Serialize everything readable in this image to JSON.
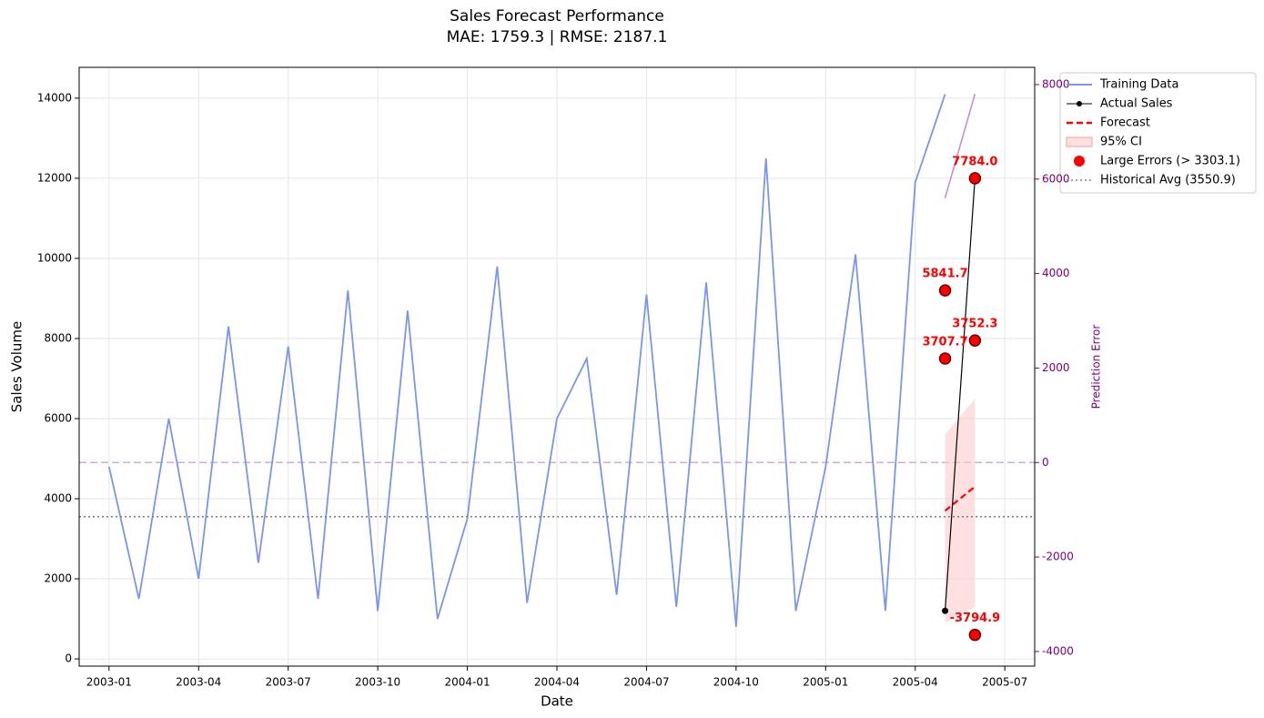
{
  "chart_data": {
    "type": "line",
    "title": "Sales Forecast Performance",
    "subtitle": "MAE: 1759.3 | RMSE: 2187.1",
    "x_label": "Date",
    "y_label": "Sales Volume",
    "y2_label": "Prediction Error",
    "xlim": [
      "2002-12",
      "2005-08"
    ],
    "xticks": [
      "2003-01",
      "2003-04",
      "2003-07",
      "2003-10",
      "2004-01",
      "2004-04",
      "2004-07",
      "2004-10",
      "2005-01",
      "2005-04",
      "2005-07"
    ],
    "ylim": [
      -180,
      14770
    ],
    "yticks": [
      0,
      2000,
      4000,
      6000,
      8000,
      10000,
      12000,
      14000
    ],
    "y2lim": [
      -4310,
      8365
    ],
    "y2ticks": [
      -4000,
      -2000,
      0,
      2000,
      4000,
      6000,
      8000
    ],
    "y2_color": "#800080",
    "grid": true,
    "legend": "upper right",
    "series": [
      {
        "name": "Training Data",
        "style": "line",
        "color": "#7b96e8",
        "x": [
          "2003-01",
          "2003-02",
          "2003-03",
          "2003-04",
          "2003-05",
          "2003-06",
          "2003-07",
          "2003-08",
          "2003-09",
          "2003-10",
          "2003-11",
          "2003-12",
          "2004-01",
          "2004-02",
          "2004-03",
          "2004-04",
          "2004-05",
          "2004-06",
          "2004-07",
          "2004-08",
          "2004-09",
          "2004-10",
          "2004-11",
          "2004-12",
          "2005-01",
          "2005-02",
          "2005-03",
          "2005-04",
          "2005-05"
        ],
        "values": [
          4800,
          1500,
          6000,
          2000,
          8300,
          2400,
          7800,
          1500,
          9200,
          1200,
          8700,
          1000,
          3500,
          9800,
          1400,
          6000,
          7500,
          1600,
          9100,
          1300,
          9400,
          800,
          12500,
          1200,
          4800,
          10100,
          1200,
          11900,
          14100
        ]
      },
      {
        "name": "Actual Sales",
        "style": "line-marker",
        "color": "#000000",
        "x": [
          "2005-05",
          "2005-06"
        ],
        "values": [
          1200,
          12000
        ]
      },
      {
        "name": "Forecast",
        "style": "dashed",
        "color": "#ff0000",
        "x": [
          "2005-05",
          "2005-06"
        ],
        "values": [
          3700,
          4300
        ]
      },
      {
        "name": "95% CI",
        "style": "band",
        "color": "#ffcccc",
        "x": [
          "2005-05",
          "2005-06"
        ],
        "lower": [
          900,
          1300
        ],
        "upper": [
          5600,
          6500
        ]
      },
      {
        "name": "Large Errors (> 3303.1)",
        "style": "points",
        "color": "#ff0000",
        "x": [
          "2005-05",
          "2005-05",
          "2005-06",
          "2005-06",
          "2005-06"
        ],
        "values": [
          9200,
          7500,
          12000,
          7950,
          600
        ],
        "point_labels": [
          "5841.7",
          "3707.7",
          "7784.0",
          "3752.3",
          "-3794.9"
        ]
      },
      {
        "name": "Historical Avg (3550.9)",
        "style": "hline",
        "color": "#808080",
        "value": 3550.9
      }
    ],
    "error": {
      "axis": "y2",
      "color": "#b060b0",
      "x": [
        "2005-05",
        "2005-06"
      ],
      "values": [
        5600,
        7800
      ],
      "zero": 0
    }
  }
}
